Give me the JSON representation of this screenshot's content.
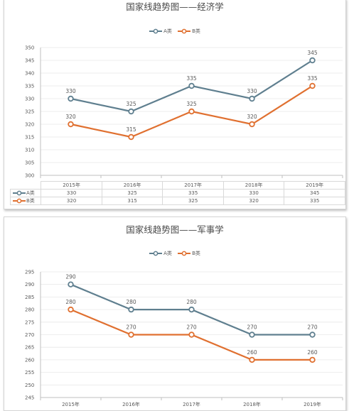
{
  "chart_data": [
    {
      "type": "line",
      "title": "国家线趋势图——经济学",
      "categories": [
        "2015年",
        "2016年",
        "2017年",
        "2018年",
        "2019年"
      ],
      "series": [
        {
          "name": "A类",
          "values": [
            330,
            325,
            335,
            330,
            345
          ],
          "color": "#5f7f8f"
        },
        {
          "name": "B类",
          "values": [
            320,
            315,
            325,
            320,
            335
          ],
          "color": "#e07030"
        }
      ],
      "ylim": [
        300,
        350
      ],
      "yticks": [
        300,
        305,
        310,
        315,
        320,
        325,
        330,
        335,
        340,
        345,
        350
      ],
      "legend": "top",
      "grid": true,
      "data_table": true
    },
    {
      "type": "line",
      "title": "国家线趋势图——军事学",
      "categories": [
        "2015年",
        "2016年",
        "2017年",
        "2018年",
        "2019年"
      ],
      "series": [
        {
          "name": "A类",
          "values": [
            290,
            280,
            280,
            270,
            270
          ],
          "color": "#5f7f8f"
        },
        {
          "name": "B类",
          "values": [
            280,
            270,
            270,
            260,
            260
          ],
          "color": "#e07030"
        }
      ],
      "ylim": [
        245,
        295
      ],
      "yticks": [
        245,
        250,
        255,
        260,
        265,
        270,
        275,
        280,
        285,
        290,
        295
      ],
      "legend": "top",
      "grid": true,
      "data_table": false
    }
  ]
}
